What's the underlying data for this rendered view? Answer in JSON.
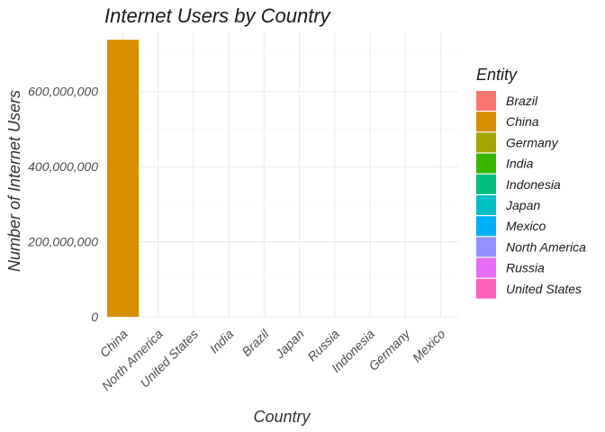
{
  "chart_data": {
    "type": "bar",
    "title": "Internet Users by Country",
    "xlabel": "Country",
    "ylabel": "Number of Internet Users",
    "categories": [
      "China",
      "North America",
      "United States",
      "India",
      "Brazil",
      "Japan",
      "Russia",
      "Indonesia",
      "Germany",
      "Mexico"
    ],
    "values": [
      738000000,
      0,
      0,
      0,
      0,
      0,
      0,
      0,
      0,
      0
    ],
    "ylim": [
      0,
      760000000
    ],
    "yticks": [
      0,
      200000000,
      400000000,
      600000000
    ],
    "ytick_labels": [
      "0",
      "200,000,000",
      "400,000,000",
      "600,000,000"
    ],
    "grid": true,
    "legend": {
      "title": "Entity",
      "position": "right",
      "entries": [
        {
          "label": "Brazil",
          "color": "#F8766D"
        },
        {
          "label": "China",
          "color": "#D89000"
        },
        {
          "label": "Germany",
          "color": "#A3A500"
        },
        {
          "label": "India",
          "color": "#39B600"
        },
        {
          "label": "Indonesia",
          "color": "#00BF7D"
        },
        {
          "label": "Japan",
          "color": "#00BFC4"
        },
        {
          "label": "Mexico",
          "color": "#00B0F6"
        },
        {
          "label": "North America",
          "color": "#9590FF"
        },
        {
          "label": "Russia",
          "color": "#E76BF3"
        },
        {
          "label": "United States",
          "color": "#FF62BC"
        }
      ]
    }
  }
}
